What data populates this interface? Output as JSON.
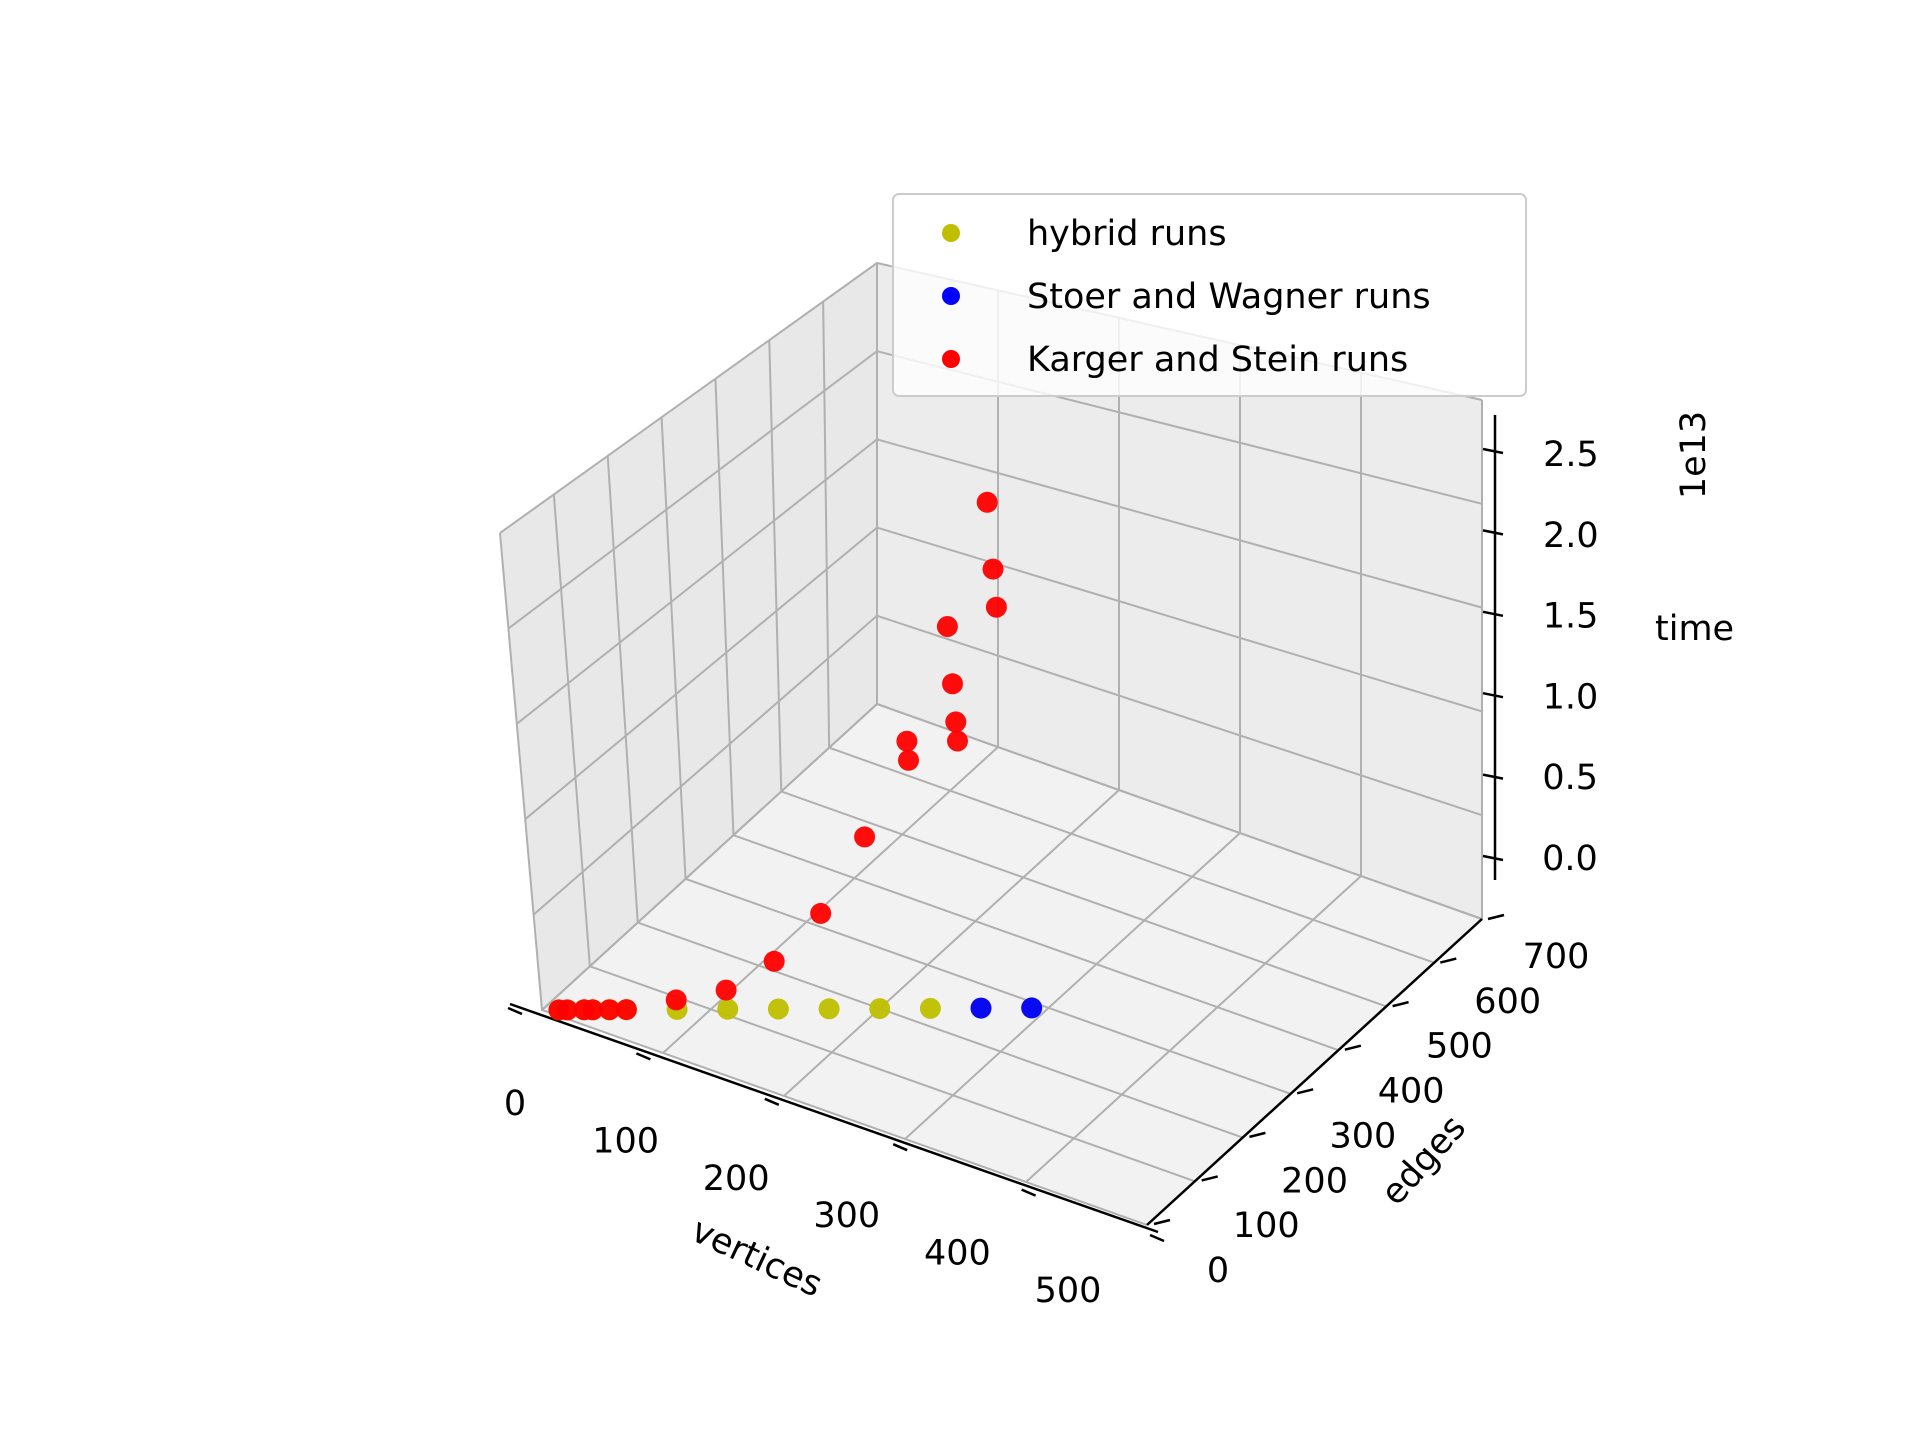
{
  "chart_data": {
    "type": "scatter",
    "projection": "3d",
    "grid": true,
    "legend_position": "top-right",
    "xlabel": "vertices",
    "ylabel": "edges",
    "zlabel": "time",
    "z_offset_label": "1e13",
    "xlim": [
      0,
      500
    ],
    "ylim": [
      0,
      700
    ],
    "zlim": [
      0,
      2.5
    ],
    "x_ticks": [
      0,
      100,
      200,
      300,
      400,
      500
    ],
    "x_tick_labels": [
      "0",
      "100",
      "200",
      "300",
      "400",
      "500"
    ],
    "y_ticks": [
      0,
      100,
      200,
      300,
      400,
      500,
      600,
      700
    ],
    "y_tick_labels": [
      "0",
      "100",
      "200",
      "300",
      "400",
      "500",
      "600",
      "700"
    ],
    "z_ticks": [
      0,
      0.5,
      1.0,
      1.5,
      2.0,
      2.5
    ],
    "z_tick_labels": [
      "0.0",
      "0.5",
      "1.0",
      "1.5",
      "2.0",
      "2.5"
    ],
    "series": [
      {
        "name": "hybrid runs",
        "color": "#bfbf00",
        "points": [
          [
            10,
            10,
            0
          ],
          [
            15,
            15,
            0
          ],
          [
            25,
            25,
            0
          ],
          [
            30,
            30,
            0
          ],
          [
            40,
            40,
            0
          ],
          [
            50,
            50,
            0
          ],
          [
            80,
            80,
            0
          ],
          [
            110,
            110,
            0
          ],
          [
            140,
            140,
            0
          ],
          [
            170,
            170,
            0
          ],
          [
            200,
            200,
            0
          ],
          [
            230,
            230,
            0
          ],
          [
            260,
            260,
            0
          ],
          [
            290,
            290,
            0
          ]
        ]
      },
      {
        "name": "Stoer and Wagner runs",
        "color": "#0000ff",
        "points": [
          [
            260,
            260,
            0
          ],
          [
            290,
            290,
            0
          ]
        ]
      },
      {
        "name": "Karger and Stein runs",
        "color": "#ff0000",
        "points": [
          [
            10,
            10,
            0
          ],
          [
            15,
            15,
            0
          ],
          [
            25,
            25,
            0
          ],
          [
            30,
            30,
            0
          ],
          [
            40,
            40,
            0
          ],
          [
            50,
            50,
            0
          ],
          [
            80,
            80,
            0.05
          ],
          [
            110,
            110,
            0.1
          ],
          [
            140,
            140,
            0.25
          ],
          [
            170,
            170,
            0.5
          ],
          [
            200,
            200,
            0.9
          ],
          [
            230,
            230,
            1.3
          ],
          [
            230,
            230,
            1.4
          ],
          [
            260,
            260,
            1.4
          ],
          [
            260,
            260,
            1.5
          ],
          [
            260,
            260,
            1.7
          ],
          [
            260,
            260,
            2.0
          ],
          [
            290,
            290,
            2.1
          ],
          [
            290,
            290,
            2.3
          ],
          [
            290,
            290,
            2.65
          ]
        ]
      }
    ]
  }
}
